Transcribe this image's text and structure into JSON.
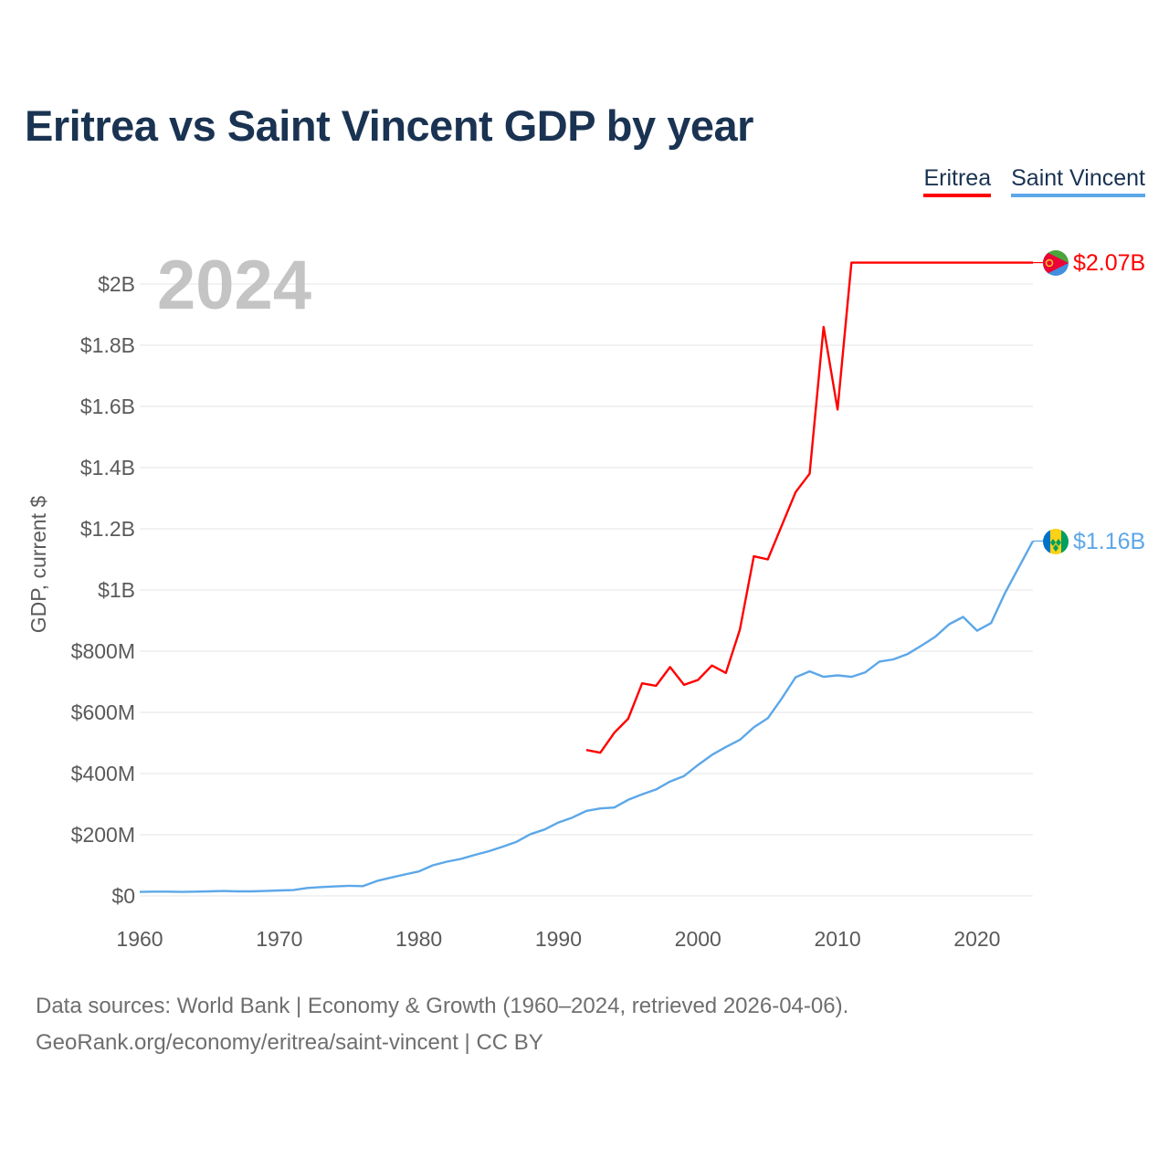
{
  "chart_data": {
    "type": "line",
    "title": "Eritrea vs Saint Vincent GDP by year",
    "year_label": "2024",
    "ylabel": "GDP, current $",
    "xlabel": "",
    "xlim": [
      1960,
      2024
    ],
    "ylim": [
      0,
      2000000000
    ],
    "x_ticks": [
      1960,
      1970,
      1980,
      1990,
      2000,
      2010,
      2020
    ],
    "y_ticks": [
      {
        "value": 0,
        "label": "$0"
      },
      {
        "value": 200000000,
        "label": "$200M"
      },
      {
        "value": 400000000,
        "label": "$400M"
      },
      {
        "value": 600000000,
        "label": "$600M"
      },
      {
        "value": 800000000,
        "label": "$800M"
      },
      {
        "value": 1000000000,
        "label": "$1B"
      },
      {
        "value": 1200000000,
        "label": "$1.2B"
      },
      {
        "value": 1400000000,
        "label": "$1.4B"
      },
      {
        "value": 1600000000,
        "label": "$1.6B"
      },
      {
        "value": 1800000000,
        "label": "$1.8B"
      },
      {
        "value": 2000000000,
        "label": "$2B"
      }
    ],
    "legend_position": "top-right",
    "series": [
      {
        "name": "Eritrea",
        "color": "#ff0000",
        "end_label": "$2.07B",
        "flag": "eritrea-flag",
        "points": [
          [
            1992,
            477000000
          ],
          [
            1993,
            468000000
          ],
          [
            1994,
            533000000
          ],
          [
            1995,
            579000000
          ],
          [
            1996,
            695000000
          ],
          [
            1997,
            687000000
          ],
          [
            1998,
            748000000
          ],
          [
            1999,
            690000000
          ],
          [
            2000,
            706000000
          ],
          [
            2001,
            753000000
          ],
          [
            2002,
            729000000
          ],
          [
            2003,
            870000000
          ],
          [
            2004,
            1110000000
          ],
          [
            2005,
            1100000000
          ],
          [
            2006,
            1210000000
          ],
          [
            2007,
            1320000000
          ],
          [
            2008,
            1380000000
          ],
          [
            2009,
            1860000000
          ],
          [
            2010,
            1590000000
          ],
          [
            2011,
            2070000000
          ],
          [
            2024,
            2070000000
          ]
        ]
      },
      {
        "name": "Saint Vincent",
        "color": "#5ca7e8",
        "end_label": "$1.16B",
        "flag": "saint-vincent-flag",
        "points": [
          [
            1960,
            13000000
          ],
          [
            1961,
            14000000
          ],
          [
            1962,
            14000000
          ],
          [
            1963,
            13000000
          ],
          [
            1964,
            14000000
          ],
          [
            1965,
            15000000
          ],
          [
            1966,
            16000000
          ],
          [
            1967,
            15000000
          ],
          [
            1968,
            15000000
          ],
          [
            1969,
            16000000
          ],
          [
            1970,
            18000000
          ],
          [
            1971,
            19000000
          ],
          [
            1972,
            26000000
          ],
          [
            1973,
            29000000
          ],
          [
            1974,
            31000000
          ],
          [
            1975,
            33000000
          ],
          [
            1976,
            32000000
          ],
          [
            1977,
            49000000
          ],
          [
            1978,
            60000000
          ],
          [
            1979,
            70000000
          ],
          [
            1980,
            80000000
          ],
          [
            1981,
            100000000
          ],
          [
            1982,
            112000000
          ],
          [
            1983,
            121000000
          ],
          [
            1984,
            134000000
          ],
          [
            1985,
            146000000
          ],
          [
            1986,
            161000000
          ],
          [
            1987,
            177000000
          ],
          [
            1988,
            202000000
          ],
          [
            1989,
            217000000
          ],
          [
            1990,
            240000000
          ],
          [
            1991,
            256000000
          ],
          [
            1992,
            278000000
          ],
          [
            1993,
            286000000
          ],
          [
            1994,
            289000000
          ],
          [
            1995,
            314000000
          ],
          [
            1996,
            332000000
          ],
          [
            1997,
            348000000
          ],
          [
            1998,
            374000000
          ],
          [
            1999,
            392000000
          ],
          [
            2000,
            428000000
          ],
          [
            2001,
            461000000
          ],
          [
            2002,
            487000000
          ],
          [
            2003,
            510000000
          ],
          [
            2004,
            551000000
          ],
          [
            2005,
            581000000
          ],
          [
            2006,
            645000000
          ],
          [
            2007,
            715000000
          ],
          [
            2008,
            734000000
          ],
          [
            2009,
            716000000
          ],
          [
            2010,
            721000000
          ],
          [
            2011,
            716000000
          ],
          [
            2012,
            731000000
          ],
          [
            2013,
            766000000
          ],
          [
            2014,
            773000000
          ],
          [
            2015,
            790000000
          ],
          [
            2016,
            818000000
          ],
          [
            2017,
            847000000
          ],
          [
            2018,
            888000000
          ],
          [
            2019,
            912000000
          ],
          [
            2020,
            867000000
          ],
          [
            2021,
            892000000
          ],
          [
            2022,
            990000000
          ],
          [
            2023,
            1075000000
          ],
          [
            2024,
            1160000000
          ]
        ]
      }
    ]
  },
  "legend": {
    "eritrea": "Eritrea",
    "saint_vincent": "Saint Vincent"
  },
  "source": {
    "line1": "Data sources: World Bank | Economy & Growth (1960–2024, retrieved 2026-04-06).",
    "line2": "GeoRank.org/economy/eritrea/saint-vincent | CC BY"
  }
}
